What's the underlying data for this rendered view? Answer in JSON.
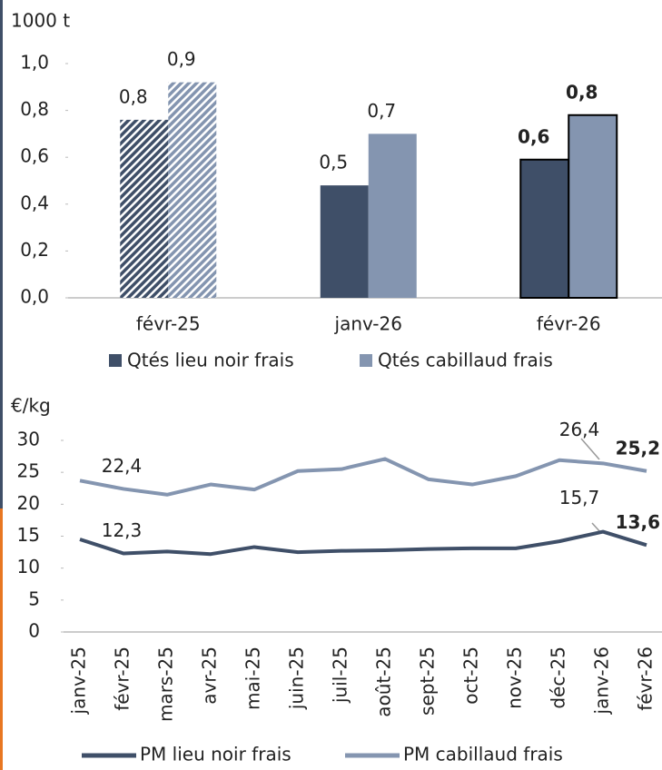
{
  "chart_data": [
    {
      "type": "bar",
      "y_label": "1000 t",
      "categories": [
        "févr-25",
        "janv-26",
        "févr-26"
      ],
      "series": [
        {
          "name": "Qtés lieu noir frais",
          "color": "#3f4f68",
          "values": [
            0.76,
            0.48,
            0.59
          ],
          "value_labels": [
            "0,8",
            "0,5",
            "0,6"
          ]
        },
        {
          "name": "Qtés cabillaud frais",
          "color": "#8495b0",
          "values": [
            0.92,
            0.7,
            0.78
          ],
          "value_labels": [
            "0,9",
            "0,7",
            "0,8"
          ]
        }
      ],
      "ylim": [
        0,
        1
      ],
      "yticks": [
        {
          "value": 0,
          "label": "0,0"
        },
        {
          "value": 0.2,
          "label": "0,2"
        },
        {
          "value": 0.4,
          "label": "0,4"
        },
        {
          "value": 0.6,
          "label": "0,6"
        },
        {
          "value": 0.8,
          "label": "0,8"
        },
        {
          "value": 1,
          "label": "1,0"
        }
      ],
      "grid": false
    },
    {
      "type": "line",
      "y_label": "€/kg",
      "categories": [
        "janv-25",
        "févr-25",
        "mars-25",
        "avr-25",
        "mai-25",
        "juin-25",
        "juil-25",
        "août-25",
        "sept-25",
        "oct-25",
        "nov-25",
        "déc-25",
        "janv-26",
        "févr-26"
      ],
      "series": [
        {
          "name": "PM lieu noir frais",
          "color": "#3f4f68",
          "values": [
            14.5,
            12.3,
            12.6,
            12.2,
            13.3,
            12.5,
            12.7,
            12.8,
            13.0,
            13.1,
            13.1,
            14.2,
            15.7,
            13.6
          ],
          "value_labels": [
            null,
            "12,3",
            null,
            null,
            null,
            null,
            null,
            null,
            null,
            null,
            null,
            null,
            "15,7",
            "13,6"
          ]
        },
        {
          "name": "PM cabillaud frais",
          "color": "#8495b0",
          "values": [
            23.7,
            22.4,
            21.5,
            23.1,
            22.3,
            25.2,
            25.5,
            27.1,
            23.9,
            23.1,
            24.4,
            26.9,
            26.4,
            25.2
          ],
          "value_labels": [
            null,
            "22,4",
            null,
            null,
            null,
            null,
            null,
            null,
            null,
            null,
            null,
            null,
            "26,4",
            "25,2"
          ]
        }
      ],
      "ylim": [
        0,
        30
      ],
      "yticks": [
        0,
        5,
        10,
        15,
        20,
        25,
        30
      ],
      "grid": false
    }
  ]
}
